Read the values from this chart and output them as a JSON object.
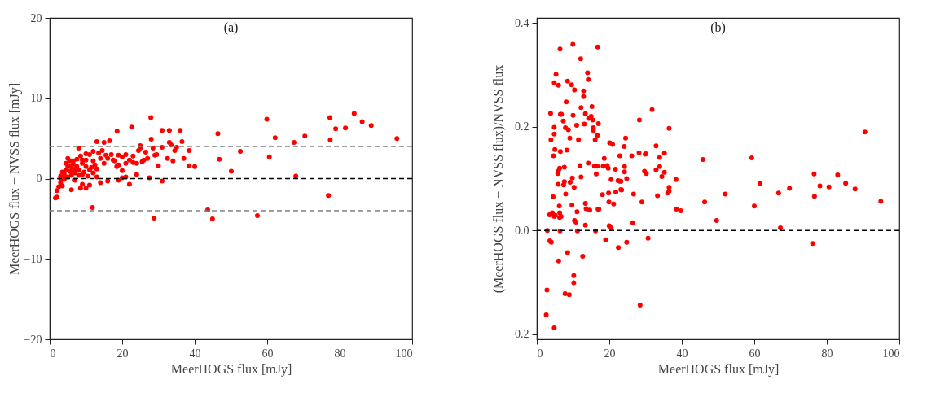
{
  "chart_data": [
    {
      "type": "scatter",
      "xlabel": "MeerHOGS flux [mJy]",
      "ylabel": "MeerHOGS flux − NVSS flux [mJy]",
      "annotations": [
        "(a)"
      ],
      "xlim": [
        0,
        100
      ],
      "xticks": [
        0,
        20,
        40,
        60,
        80,
        100
      ],
      "ylim": [
        -20,
        20
      ],
      "yticks": [
        {
          "value": -20,
          "label": "−20"
        },
        {
          "value": -10,
          "label": "−10"
        },
        0,
        10,
        20
      ],
      "grid": false,
      "marker": "circle",
      "ref_lines": [
        {
          "axis": "y",
          "value": 0,
          "label": null,
          "color": "#000000",
          "line_style": "dashed"
        },
        {
          "axis": "y",
          "value": 4,
          "label": null,
          "color": "#808080",
          "line_style": "dashed"
        },
        {
          "axis": "y",
          "value": -4,
          "label": null,
          "color": "#808080",
          "line_style": "dashed"
        }
      ],
      "x": [
        27.9,
        22.6,
        18.6,
        1.6,
        11.8,
        28.8,
        43.6,
        44.9,
        46.4,
        46.8,
        59.9,
        52.6,
        50.1,
        57.3,
        60.6,
        62.2,
        67.4,
        67.9,
        70.4,
        76.9,
        77.3,
        77.4,
        78.9,
        81.6,
        84.0,
        86.2,
        88.7,
        95.8,
        36,
        33,
        31,
        40,
        38.5,
        38.5,
        37,
        36.5,
        35,
        34.5,
        34,
        33.5,
        33,
        31,
        30,
        29,
        28.5,
        28,
        27,
        26.5,
        25,
        25,
        24.5,
        24,
        24,
        23,
        22,
        21,
        21,
        20,
        20,
        19,
        19,
        18,
        17,
        16.5,
        16,
        15.5,
        15,
        14,
        13.5,
        13,
        13,
        12.5,
        12,
        12,
        11,
        11,
        10.5,
        10,
        10,
        9.5,
        9,
        9,
        8.5,
        8.5,
        8,
        8,
        7.5,
        7,
        7,
        6.5,
        6,
        6,
        5.5,
        5,
        5,
        4.5,
        4,
        4,
        3.5,
        3,
        3,
        2.5,
        2,
        2,
        3.5,
        6,
        10,
        11,
        14,
        20,
        22,
        31,
        27.5,
        7.5,
        6.5,
        5.5,
        4.5,
        5,
        9,
        8,
        11.5,
        15,
        17.5,
        18.5,
        23,
        25.5,
        26,
        32.5,
        29.5,
        12,
        14.5,
        10,
        6,
        4,
        3,
        7,
        9,
        13,
        16,
        19,
        21
      ],
      "series": [
        {
          "color": "#ff0000",
          "values": [
            7.6,
            6.4,
            5.9,
            -2.4,
            -3.6,
            -4.9,
            -3.9,
            -5.0,
            5.6,
            2.4,
            7.4,
            3.4,
            0.9,
            -4.6,
            2.7,
            5.1,
            4.5,
            0.3,
            5.3,
            -2.1,
            7.6,
            4.8,
            6.2,
            6.3,
            8.1,
            7.1,
            6.6,
            5.0,
            6,
            6,
            6,
            1.5,
            1.6,
            3.5,
            2.5,
            4.6,
            3.9,
            3.5,
            2.2,
            4.2,
            4.5,
            3.9,
            1.6,
            2.9,
            3.8,
            4.9,
            2.5,
            3.3,
            3.8,
            4.1,
            3.5,
            1.9,
            0.5,
            2,
            2.3,
            3,
            1.9,
            2.7,
            0.1,
            2.9,
            1.7,
            2.2,
            3,
            4.7,
            2.5,
            2.9,
            4.5,
            2.5,
            3.2,
            4.6,
            1.2,
            1.7,
            2.2,
            0.7,
            3,
            1.1,
            0.3,
            2.3,
            1.5,
            0.8,
            1.9,
            -0.7,
            2.8,
            -1.2,
            3.8,
            0.4,
            1.5,
            1.2,
            -0.2,
            2.2,
            1.6,
            0.4,
            0.9,
            1.5,
            0.2,
            1.1,
            0.5,
            -0.1,
            0.8,
            0,
            -0.5,
            -1.0,
            -1.5,
            -2.3,
            -0.9,
            -1.4,
            -1.2,
            -0.8,
            -0.5,
            1,
            -0.7,
            -0.3,
            0.1,
            2.4,
            1.8,
            2.2,
            1.9,
            2.5,
            2.3,
            1.1,
            1.4,
            1.9,
            2.3,
            1.5,
            2.8,
            2.1,
            2.3,
            2.5,
            3,
            3.4,
            3.5,
            3.1,
            1,
            0.8,
            0.3,
            0.7,
            0.5,
            0.2,
            -0.3,
            -0.2,
            0.2
          ]
        }
      ]
    },
    {
      "type": "scatter",
      "xlabel": "MeerHOGS flux [mJy]",
      "ylabel": "(MeerHOGS flux − NVSS flux)/NVSS flux",
      "annotations": [
        "(b)"
      ],
      "xlim": [
        0,
        100
      ],
      "xticks": [
        0,
        20,
        40,
        60,
        80,
        100
      ],
      "ylim": [
        -0.21,
        0.41
      ],
      "yticks": [
        {
          "value": -0.2,
          "label": "−0.2"
        },
        {
          "value": 0,
          "label": "0.0"
        },
        0.2,
        0.4
      ],
      "grid": false,
      "marker": "circle",
      "ref_lines": [
        {
          "axis": "y",
          "value": 0,
          "label": null,
          "color": "#000000",
          "line_style": "dashed"
        }
      ],
      "x": [
        9.95,
        6.4,
        16.8,
        12.1,
        5.3,
        14.0,
        14.2,
        4.8,
        6.0,
        8.5,
        9.6,
        10.4,
        12.9,
        12.9,
        8.1,
        12.2,
        15.2,
        3.8,
        6.5,
        6.8,
        10.0,
        13.4,
        15.0,
        14.3,
        15.4,
        7.3,
        17.0,
        13.1,
        11.0,
        7.9,
        4.8,
        15.6,
        15.6,
        8.7,
        4.8,
        16.7,
        9.1,
        3.9,
        11.5,
        16.1,
        20.1,
        20.9,
        4.98,
        8.3,
        6.5,
        4.6,
        24.1,
        24.5,
        18.6,
        22.9,
        26.2,
        28.2,
        29.9,
        30.1,
        11.9,
        14.2,
        15.9,
        16.7,
        18.3,
        19.4,
        19.7,
        7.6,
        6.3,
        6.0,
        5.8,
        21.7,
        24.2,
        24.2,
        24.8,
        29.7,
        30.2,
        16.4,
        12.2,
        9.8,
        20.5,
        22.4,
        22.9,
        23.2,
        7.6,
        7.4,
        5.9,
        9.2,
        10.3,
        23.2,
        23.4,
        21.8,
        19.8,
        7.96,
        18.1,
        26.7,
        4.5,
        19.9,
        21.2,
        29.0,
        9.7,
        13.4,
        6.2,
        13.6,
        14.6,
        16.9,
        17.1,
        11.1,
        6.3,
        4.3,
        3.5,
        3.8,
        4.8,
        5.1,
        6.7,
        6.3,
        10.4,
        10.8,
        13.4,
        19.97,
        20.5,
        26.5,
        2.9,
        6.4,
        11.2,
        16.2,
        3.6,
        4.0,
        18.98,
        30.7,
        24.8,
        22.5,
        8.5,
        12.65,
        6.04,
        10.2,
        10.2,
        2.8,
        7.8,
        8.96,
        28.5,
        2.6,
        4.8,
        31.8,
        28.3,
        36.5,
        32.9,
        35.2,
        33.9,
        32.9,
        33.9,
        35.2,
        34.5,
        36.5,
        36.5,
        36.1,
        33.3,
        38.4,
        38.5,
        39.7,
        45.8,
        46.3,
        49.6,
        52.0,
        59.3,
        60.0,
        61.6,
        66.7,
        67.2,
        69.7,
        76.1,
        76.5,
        76.6,
        78.1,
        80.6,
        83.0,
        85.2,
        87.8,
        90.5,
        94.9
      ],
      "series": [
        {
          "color": "#ff0000",
          "values": [
            0.359,
            0.35,
            0.354,
            0.331,
            0.301,
            0.304,
            0.291,
            0.285,
            0.28,
            0.288,
            0.281,
            0.271,
            0.269,
            0.258,
            0.248,
            0.237,
            0.239,
            0.226,
            0.224,
            0.224,
            0.222,
            0.225,
            0.22,
            0.216,
            0.213,
            0.211,
            0.206,
            0.205,
            0.203,
            0.198,
            0.199,
            0.198,
            0.193,
            0.194,
            0.186,
            0.183,
            0.178,
            0.175,
            0.175,
            0.175,
            0.169,
            0.166,
            0.156,
            0.155,
            0.152,
            0.144,
            0.162,
            0.178,
            0.139,
            0.144,
            0.144,
            0.15,
            0.147,
            0.148,
            0.125,
            0.13,
            0.124,
            0.124,
            0.124,
            0.125,
            0.12,
            0.122,
            0.12,
            0.115,
            0.11,
            0.118,
            0.123,
            0.113,
            0.1,
            0.114,
            0.11,
            0.109,
            0.103,
            0.101,
            0.098,
            0.096,
            0.095,
            0.095,
            0.094,
            0.088,
            0.089,
            0.093,
            0.083,
            0.079,
            0.078,
            0.074,
            0.072,
            0.07,
            0.069,
            0.07,
            0.065,
            0.055,
            0.051,
            0.055,
            0.049,
            0.052,
            0.047,
            0.042,
            0.039,
            0.041,
            0.041,
            0.036,
            0.034,
            0.034,
            0.03,
            0.031,
            0.027,
            0.029,
            0.027,
            0.025,
            0.019,
            0.016,
            0.01,
            0.009,
            0.005,
            0.015,
            0.0,
            -0.001,
            -0.001,
            -0.001,
            -0.02,
            -0.023,
            -0.018,
            -0.015,
            -0.023,
            -0.033,
            -0.043,
            -0.05,
            -0.059,
            -0.087,
            -0.101,
            -0.115,
            -0.122,
            -0.124,
            -0.144,
            -0.163,
            -0.188,
            0.233,
            0.213,
            0.197,
            0.163,
            0.149,
            0.141,
            0.117,
            0.123,
            0.112,
            0.104,
            0.083,
            0.076,
            0.072,
            0.067,
            0.098,
            0.041,
            0.038,
            0.137,
            0.055,
            0.019,
            0.07,
            0.14,
            0.047,
            0.091,
            0.072,
            0.005,
            0.081,
            -0.025,
            0.109,
            0.066,
            0.086,
            0.084,
            0.107,
            0.091,
            0.08,
            0.19,
            0.056
          ]
        }
      ]
    }
  ]
}
